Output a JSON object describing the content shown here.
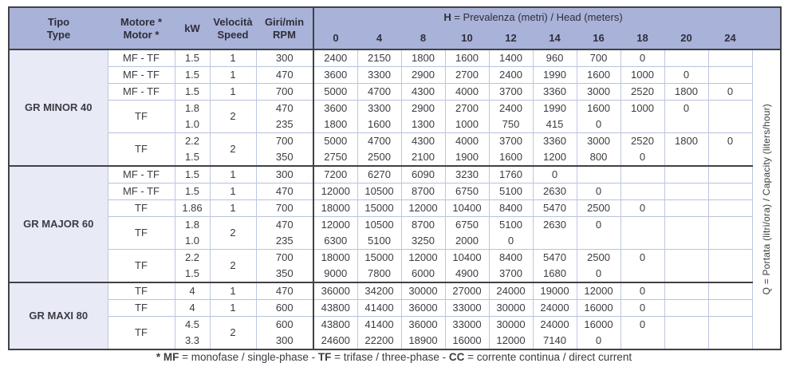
{
  "header": {
    "tipo_line1": "Tipo",
    "tipo_line2": "Type",
    "motore_line1": "Motore *",
    "motore_line2": "Motor *",
    "kw": "kW",
    "velocita_line1": "Velocità",
    "velocita_line2": "Speed",
    "giri_line1": "Giri/min",
    "giri_line2": "RPM",
    "head_label_bold": "H",
    "head_label_rest": " = Prevalenza (metri) / Head (meters)",
    "head_values": [
      "0",
      "4",
      "8",
      "10",
      "12",
      "14",
      "16",
      "18",
      "20",
      "24"
    ]
  },
  "q_label": "Q = Portata (litri/ora) / Capacity (liters/hour)",
  "sections": [
    {
      "type": "GR MINOR 40",
      "groups": [
        {
          "motor": "MF - TF",
          "speed": "1",
          "rows": [
            {
              "kw": "1.5",
              "rpm": "300",
              "values": [
                2400,
                2150,
                1800,
                1600,
                1400,
                960,
                700,
                0
              ]
            }
          ]
        },
        {
          "motor": "MF - TF",
          "speed": "1",
          "rows": [
            {
              "kw": "1.5",
              "rpm": "470",
              "values": [
                3600,
                3300,
                2900,
                2700,
                2400,
                1990,
                1600,
                1000,
                0
              ]
            }
          ]
        },
        {
          "motor": "MF - TF",
          "speed": "1",
          "rows": [
            {
              "kw": "1.5",
              "rpm": "700",
              "values": [
                5000,
                4700,
                4300,
                4000,
                3700,
                3360,
                3000,
                2520,
                1800,
                0
              ]
            }
          ]
        },
        {
          "motor": "TF",
          "speed": "2",
          "rows": [
            {
              "kw": "1.8",
              "rpm": "470",
              "values": [
                3600,
                3300,
                2900,
                2700,
                2400,
                1990,
                1600,
                1000,
                0
              ]
            },
            {
              "kw": "1.0",
              "rpm": "235",
              "values": [
                1800,
                1600,
                1300,
                1000,
                750,
                415,
                0
              ]
            }
          ]
        },
        {
          "motor": "TF",
          "speed": "2",
          "rows": [
            {
              "kw": "2.2",
              "rpm": "700",
              "values": [
                5000,
                4700,
                4300,
                4000,
                3700,
                3360,
                3000,
                2520,
                1800,
                0
              ]
            },
            {
              "kw": "1.5",
              "rpm": "350",
              "values": [
                2750,
                2500,
                2100,
                1900,
                1600,
                1200,
                800,
                0
              ]
            }
          ]
        }
      ]
    },
    {
      "type": "GR MAJOR 60",
      "groups": [
        {
          "motor": "MF - TF",
          "speed": "1",
          "rows": [
            {
              "kw": "1.5",
              "rpm": "300",
              "values": [
                7200,
                6270,
                6090,
                3230,
                1760,
                0
              ]
            }
          ]
        },
        {
          "motor": "MF - TF",
          "speed": "1",
          "rows": [
            {
              "kw": "1.5",
              "rpm": "470",
              "values": [
                12000,
                10500,
                8700,
                6750,
                5100,
                2630,
                0
              ]
            }
          ]
        },
        {
          "motor": "TF",
          "speed": "1",
          "rows": [
            {
              "kw": "1.86",
              "rpm": "700",
              "values": [
                18000,
                15000,
                12000,
                10400,
                8400,
                5470,
                2500,
                0
              ]
            }
          ]
        },
        {
          "motor": "TF",
          "speed": "2",
          "rows": [
            {
              "kw": "1.8",
              "rpm": "470",
              "values": [
                12000,
                10500,
                8700,
                6750,
                5100,
                2630,
                0
              ]
            },
            {
              "kw": "1.0",
              "rpm": "235",
              "values": [
                6300,
                5100,
                3250,
                2000,
                0
              ]
            }
          ]
        },
        {
          "motor": "TF",
          "speed": "2",
          "rows": [
            {
              "kw": "2.2",
              "rpm": "700",
              "values": [
                18000,
                15000,
                12000,
                10400,
                8400,
                5470,
                2500,
                0
              ]
            },
            {
              "kw": "1.5",
              "rpm": "350",
              "values": [
                9000,
                7800,
                6000,
                4900,
                3700,
                1680,
                0
              ]
            }
          ]
        }
      ]
    },
    {
      "type": "GR MAXI 80",
      "groups": [
        {
          "motor": "TF",
          "speed": "1",
          "rows": [
            {
              "kw": "4",
              "rpm": "470",
              "values": [
                36000,
                34200,
                30000,
                27000,
                24000,
                19000,
                12000,
                0
              ]
            }
          ]
        },
        {
          "motor": "TF",
          "speed": "1",
          "rows": [
            {
              "kw": "4",
              "rpm": "600",
              "values": [
                43800,
                41400,
                36000,
                33000,
                30000,
                24000,
                16000,
                0
              ]
            }
          ]
        },
        {
          "motor": "TF",
          "speed": "2",
          "rows": [
            {
              "kw": "4.5",
              "rpm": "600",
              "values": [
                43800,
                41400,
                36000,
                33000,
                30000,
                24000,
                16000,
                0
              ]
            },
            {
              "kw": "3.3",
              "rpm": "300",
              "values": [
                24600,
                22200,
                18900,
                16000,
                12000,
                7140,
                0
              ]
            }
          ]
        }
      ]
    }
  ],
  "footnote_segments": [
    {
      "text": "* MF",
      "bold": true
    },
    {
      "text": " = monofase / single-phase - ",
      "bold": false
    },
    {
      "text": "TF",
      "bold": true
    },
    {
      "text": " = trifase / three-phase - ",
      "bold": false
    },
    {
      "text": "CC",
      "bold": true
    },
    {
      "text": " = corrente continua / direct current",
      "bold": false
    }
  ],
  "colors": {
    "header_blue": "#a9b2d8",
    "type_column_lavender": "#e8eaf6",
    "grid_line": "#b9c1de",
    "dark_line": "#414146"
  }
}
